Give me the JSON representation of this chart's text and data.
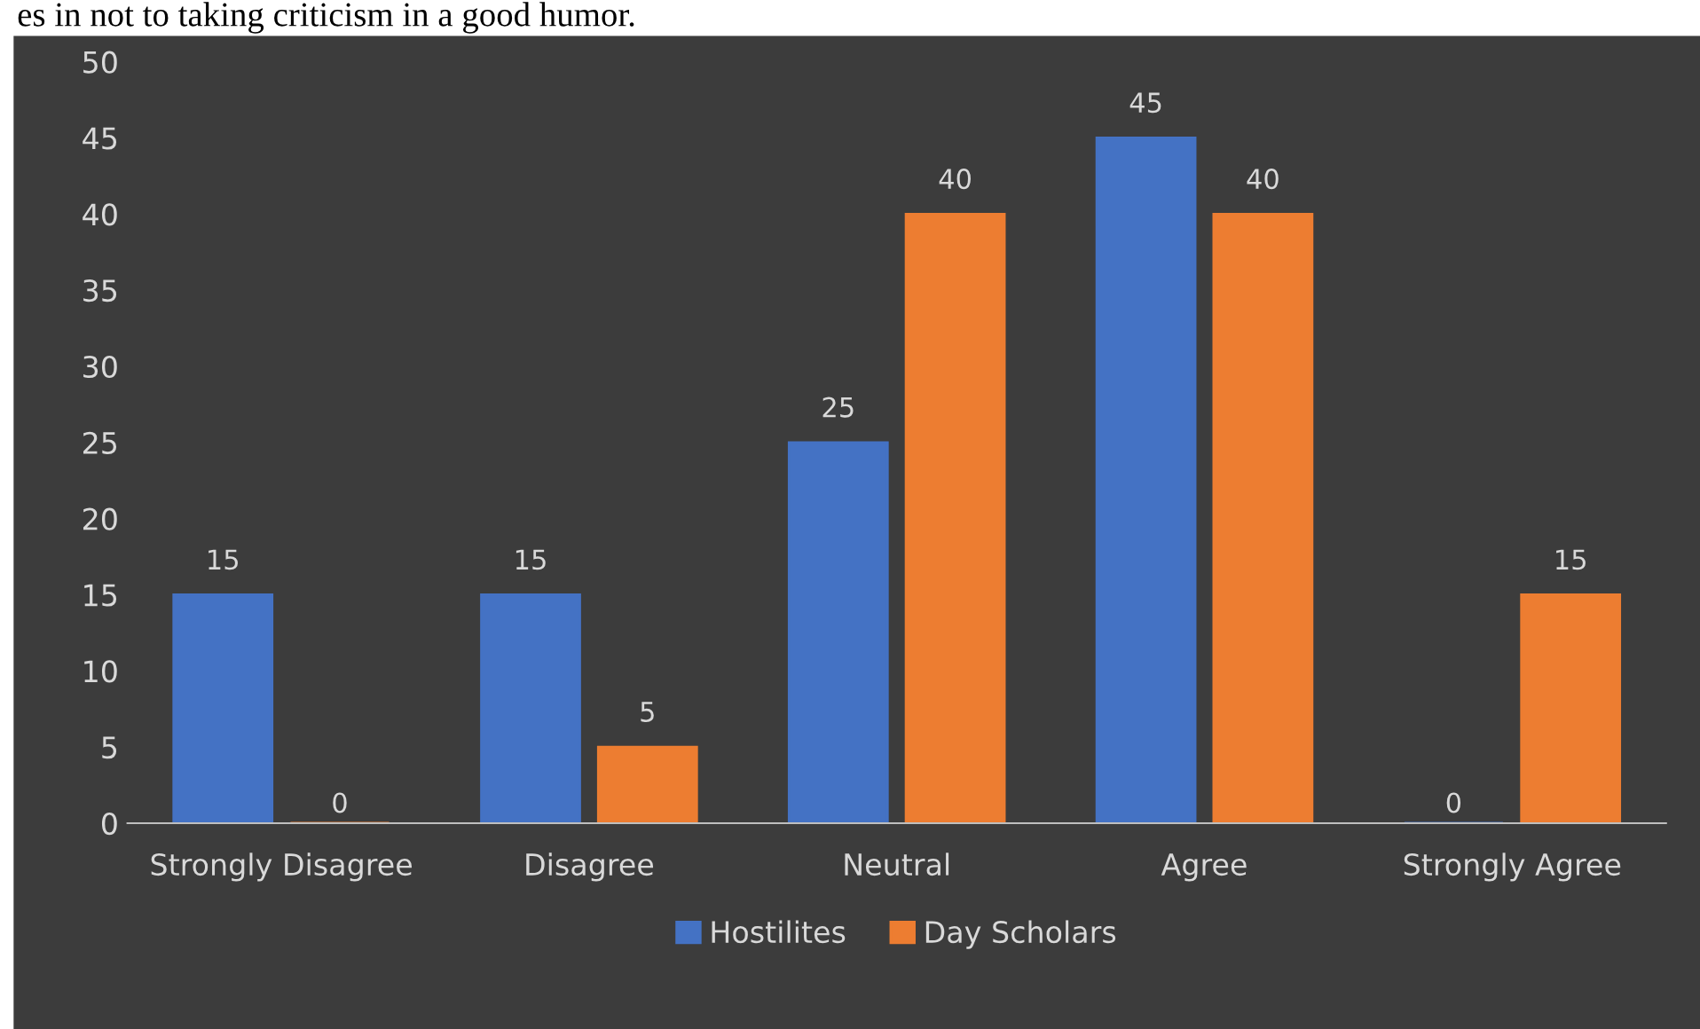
{
  "chart_data": {
    "type": "bar",
    "annotations": [
      "es in not to taking criticism in a good humor."
    ],
    "categories": [
      "Strongly Disagree",
      "Disagree",
      "Neutral",
      "Agree",
      "Strongly Agree"
    ],
    "series": [
      {
        "name": "Hostilites",
        "color": "#4472c4",
        "values": [
          15,
          15,
          25,
          45,
          0
        ]
      },
      {
        "name": "Day Scholars",
        "color": "#ed7d31",
        "values": [
          0,
          5,
          40,
          40,
          15
        ]
      }
    ],
    "ylim": [
      0,
      50
    ],
    "yticks": [
      0,
      5,
      10,
      15,
      20,
      25,
      30,
      35,
      40,
      45,
      50
    ],
    "grid": false,
    "legend": "bottom",
    "data_labels": true
  }
}
